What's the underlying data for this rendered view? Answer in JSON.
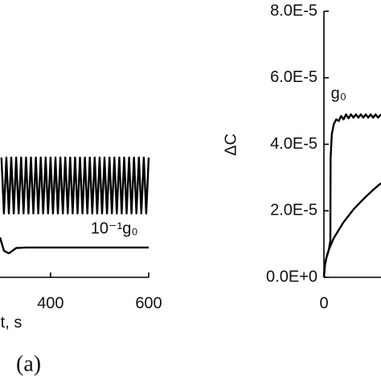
{
  "chart_data": [
    {
      "type": "line",
      "xlabel": "t, s",
      "panel_label": "(a)",
      "xlim": [
        297,
        600
      ],
      "xticks": [
        400,
        600
      ],
      "ylim": [
        0,
        1
      ],
      "annotations": [
        {
          "text": "10⁻¹g₀",
          "x": 530,
          "y": 0.18
        }
      ],
      "series": [
        {
          "name": "g₀",
          "color": "#000000",
          "x": [
            300,
            305,
            310,
            315,
            320,
            325,
            330,
            335,
            340,
            345,
            350,
            355,
            360,
            365,
            370,
            375,
            380,
            385,
            390,
            395,
            400,
            405,
            410,
            415,
            420,
            425,
            430,
            435,
            440,
            445,
            450,
            455,
            460,
            465,
            470,
            475,
            480,
            485,
            490,
            495,
            500,
            505,
            510,
            515,
            520,
            525,
            530,
            535,
            540,
            545,
            550,
            555,
            560,
            565,
            570,
            575,
            580,
            585,
            590,
            595,
            600
          ],
          "values": [
            0.45,
            0.24,
            0.45,
            0.24,
            0.45,
            0.24,
            0.45,
            0.24,
            0.45,
            0.24,
            0.45,
            0.24,
            0.45,
            0.24,
            0.45,
            0.24,
            0.45,
            0.24,
            0.45,
            0.24,
            0.45,
            0.24,
            0.45,
            0.24,
            0.45,
            0.24,
            0.45,
            0.24,
            0.45,
            0.24,
            0.45,
            0.24,
            0.45,
            0.24,
            0.45,
            0.24,
            0.45,
            0.24,
            0.45,
            0.24,
            0.45,
            0.24,
            0.45,
            0.24,
            0.45,
            0.24,
            0.45,
            0.24,
            0.45,
            0.24,
            0.45,
            0.24,
            0.45,
            0.24,
            0.45,
            0.24,
            0.45,
            0.24,
            0.45,
            0.24,
            0.45
          ]
        },
        {
          "name": "10⁻¹g₀",
          "color": "#000000",
          "x": [
            297,
            305,
            315,
            330,
            350,
            600
          ],
          "values": [
            0.15,
            0.1,
            0.09,
            0.11,
            0.112,
            0.112
          ]
        }
      ]
    },
    {
      "type": "line",
      "ylabel": "ΔC",
      "xlim": [
        0,
        116
      ],
      "xticks": [
        0
      ],
      "ylim": [
        0,
        8e-05
      ],
      "yticks": [
        {
          "value": 0,
          "label": "0.0E+0"
        },
        {
          "value": 2e-05,
          "label": "2.0E-5"
        },
        {
          "value": 4e-05,
          "label": "4.0E-5"
        },
        {
          "value": 6e-05,
          "label": "6.0E-5"
        },
        {
          "value": 8e-05,
          "label": "8.0E-5"
        }
      ],
      "annotations": [
        {
          "text": "g₀",
          "x": 30,
          "y": 5.5e-05
        }
      ],
      "series": [
        {
          "name": "g₀",
          "color": "#000000",
          "x": [
            0,
            2,
            5,
            10,
            13,
            13.5,
            16,
            20,
            25,
            30,
            35,
            40,
            45,
            50,
            55,
            60,
            65,
            70,
            75,
            80,
            85,
            90,
            95,
            100,
            105,
            110,
            116
          ],
          "values": [
            0,
            3.7e-06,
            5.9e-06,
            8.3e-06,
            1.1e-05,
            3.6e-05,
            4.3e-05,
            4.6e-05,
            4.75e-05,
            4.7e-05,
            4.85e-05,
            4.75e-05,
            4.9e-05,
            4.78e-05,
            4.9e-05,
            4.8e-05,
            4.9e-05,
            4.8e-05,
            4.9e-05,
            4.8e-05,
            4.9e-05,
            4.8e-05,
            4.9e-05,
            4.8e-05,
            4.9e-05,
            4.8e-05,
            4.9e-05
          ]
        },
        {
          "name": "10⁻¹g₀",
          "color": "#000000",
          "x": [
            0,
            2,
            5,
            10,
            20,
            40,
            60,
            80,
            100,
            116
          ],
          "values": [
            0,
            3.7e-06,
            5.9e-06,
            8.3e-06,
            1.18e-05,
            1.66e-05,
            2.04e-05,
            2.35e-05,
            2.63e-05,
            2.83e-05
          ]
        }
      ]
    }
  ]
}
